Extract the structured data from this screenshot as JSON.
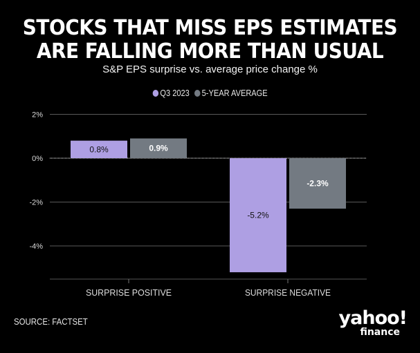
{
  "header": {
    "title_line1": "STOCKS THAT MISS EPS ESTIMATES",
    "title_line2": "ARE FALLING MORE THAN USUAL",
    "subtitle": "S&P EPS surprise vs. average price change %"
  },
  "legend": [
    {
      "label": "Q3 2023",
      "color": "#ae9fe3"
    },
    {
      "label": "5-YEAR AVERAGE",
      "color": "#737a82"
    }
  ],
  "footer": {
    "source": "SOURCE: FACTSET",
    "logo_main": "yahoo!",
    "logo_sub": "finance"
  },
  "chart_data": {
    "type": "bar",
    "title": "STOCKS THAT MISS EPS ESTIMATES ARE FALLING MORE THAN USUAL",
    "subtitle": "S&P EPS surprise vs. average price change %",
    "categories": [
      "SURPRISE POSITIVE",
      "SURPRISE NEGATIVE"
    ],
    "series": [
      {
        "name": "Q3 2023",
        "color": "#ae9fe3",
        "values": [
          0.8,
          -5.2
        ],
        "labels": [
          "0.8%",
          "-5.2%"
        ],
        "label_color": "#111111"
      },
      {
        "name": "5-YEAR AVERAGE",
        "color": "#737a82",
        "values": [
          0.9,
          -2.3
        ],
        "labels": [
          "0.9%",
          "-2.3%"
        ],
        "label_color": "#ffffff"
      }
    ],
    "ylim": [
      -5.5,
      2
    ],
    "yticks": [
      2,
      0,
      -2,
      -4
    ],
    "ytick_labels": [
      "2%",
      "0%",
      "-2%",
      "-4%"
    ],
    "xlabel": "",
    "ylabel": "",
    "grid": true,
    "legend_position": "top-center"
  }
}
